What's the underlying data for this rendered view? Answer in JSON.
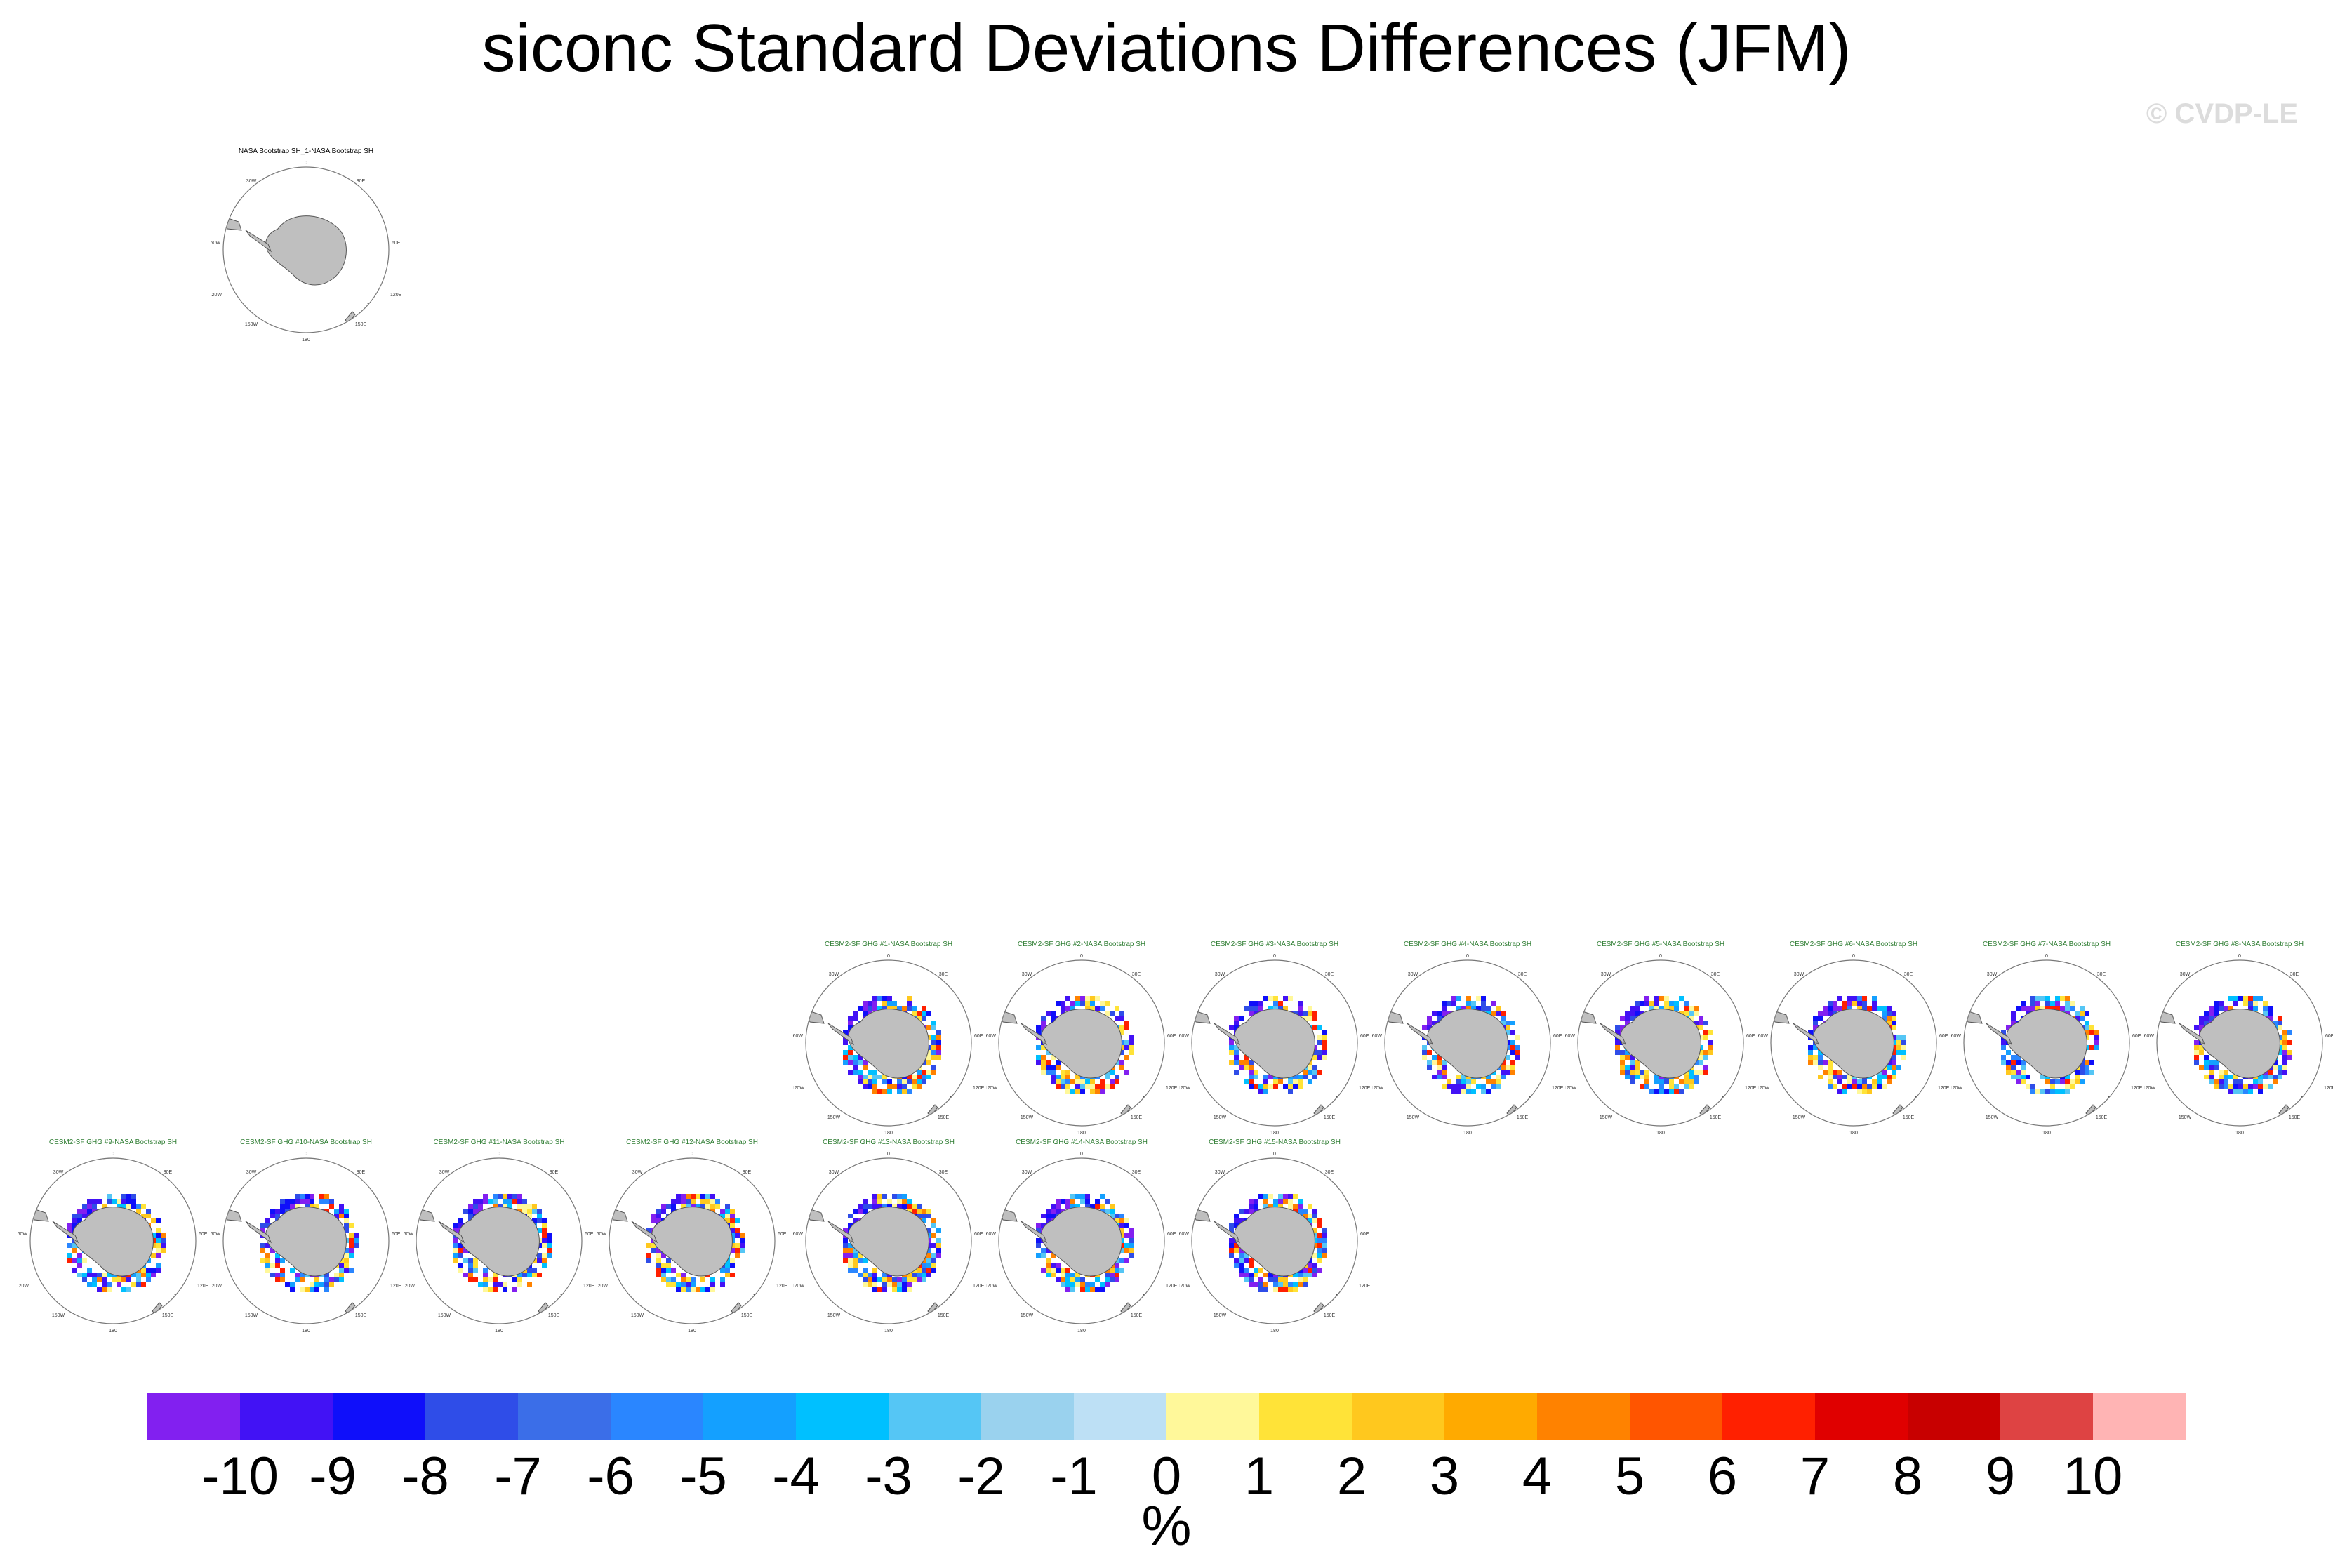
{
  "figure": {
    "title": "siconc Standard Deviations Differences (JFM)",
    "watermark": "© CVDP-LE",
    "units": "%"
  },
  "panels": [
    {
      "title": "NASA Bootstrap SH_1-NASA Bootstrap SH",
      "kind": "obs"
    },
    {
      "title": "CESM2-SF GHG #1-NASA Bootstrap SH",
      "kind": "model"
    },
    {
      "title": "CESM2-SF GHG #2-NASA Bootstrap SH",
      "kind": "model"
    },
    {
      "title": "CESM2-SF GHG #3-NASA Bootstrap SH",
      "kind": "model"
    },
    {
      "title": "CESM2-SF GHG #4-NASA Bootstrap SH",
      "kind": "model"
    },
    {
      "title": "CESM2-SF GHG #5-NASA Bootstrap SH",
      "kind": "model"
    },
    {
      "title": "CESM2-SF GHG #6-NASA Bootstrap SH",
      "kind": "model"
    },
    {
      "title": "CESM2-SF GHG #7-NASA Bootstrap SH",
      "kind": "model"
    },
    {
      "title": "CESM2-SF GHG #8-NASA Bootstrap SH",
      "kind": "model"
    },
    {
      "title": "CESM2-SF GHG #9-NASA Bootstrap SH",
      "kind": "model"
    },
    {
      "title": "CESM2-SF GHG #10-NASA Bootstrap SH",
      "kind": "model"
    },
    {
      "title": "CESM2-SF GHG #11-NASA Bootstrap SH",
      "kind": "model"
    },
    {
      "title": "CESM2-SF GHG #12-NASA Bootstrap SH",
      "kind": "model"
    },
    {
      "title": "CESM2-SF GHG #13-NASA Bootstrap SH",
      "kind": "model"
    },
    {
      "title": "CESM2-SF GHG #14-NASA Bootstrap SH",
      "kind": "model"
    },
    {
      "title": "CESM2-SF GHG #15-NASA Bootstrap SH",
      "kind": "model"
    }
  ],
  "colorbar": {
    "labels": [
      "-10",
      "-9",
      "-8",
      "-7",
      "-6",
      "-5",
      "-4",
      "-3",
      "-2",
      "-1",
      "0",
      "1",
      "2",
      "3",
      "4",
      "5",
      "6",
      "7",
      "8",
      "9",
      "10"
    ],
    "colors": [
      "#8220f0",
      "#4212f5",
      "#0f0ffa",
      "#2f4de8",
      "#3b6ee8",
      "#2a86ff",
      "#14a0ff",
      "#00c0ff",
      "#55c6f5",
      "#9ad2ee",
      "#bde0f5",
      "#fff89a",
      "#ffe338",
      "#ffc81e",
      "#ffaa00",
      "#ff8200",
      "#ff5500",
      "#ff2000",
      "#e00000",
      "#c80000",
      "#de4343",
      "#ffb4b4"
    ]
  },
  "map_labels": {
    "top": "0",
    "left_top": "30W",
    "right_top": "30E",
    "left_mid": "60W",
    "right_mid": "60E",
    "left_low": "120W",
    "right_low": "120E",
    "bottom_left": "150W",
    "bottom_right": "150E",
    "bottom": "180"
  }
}
